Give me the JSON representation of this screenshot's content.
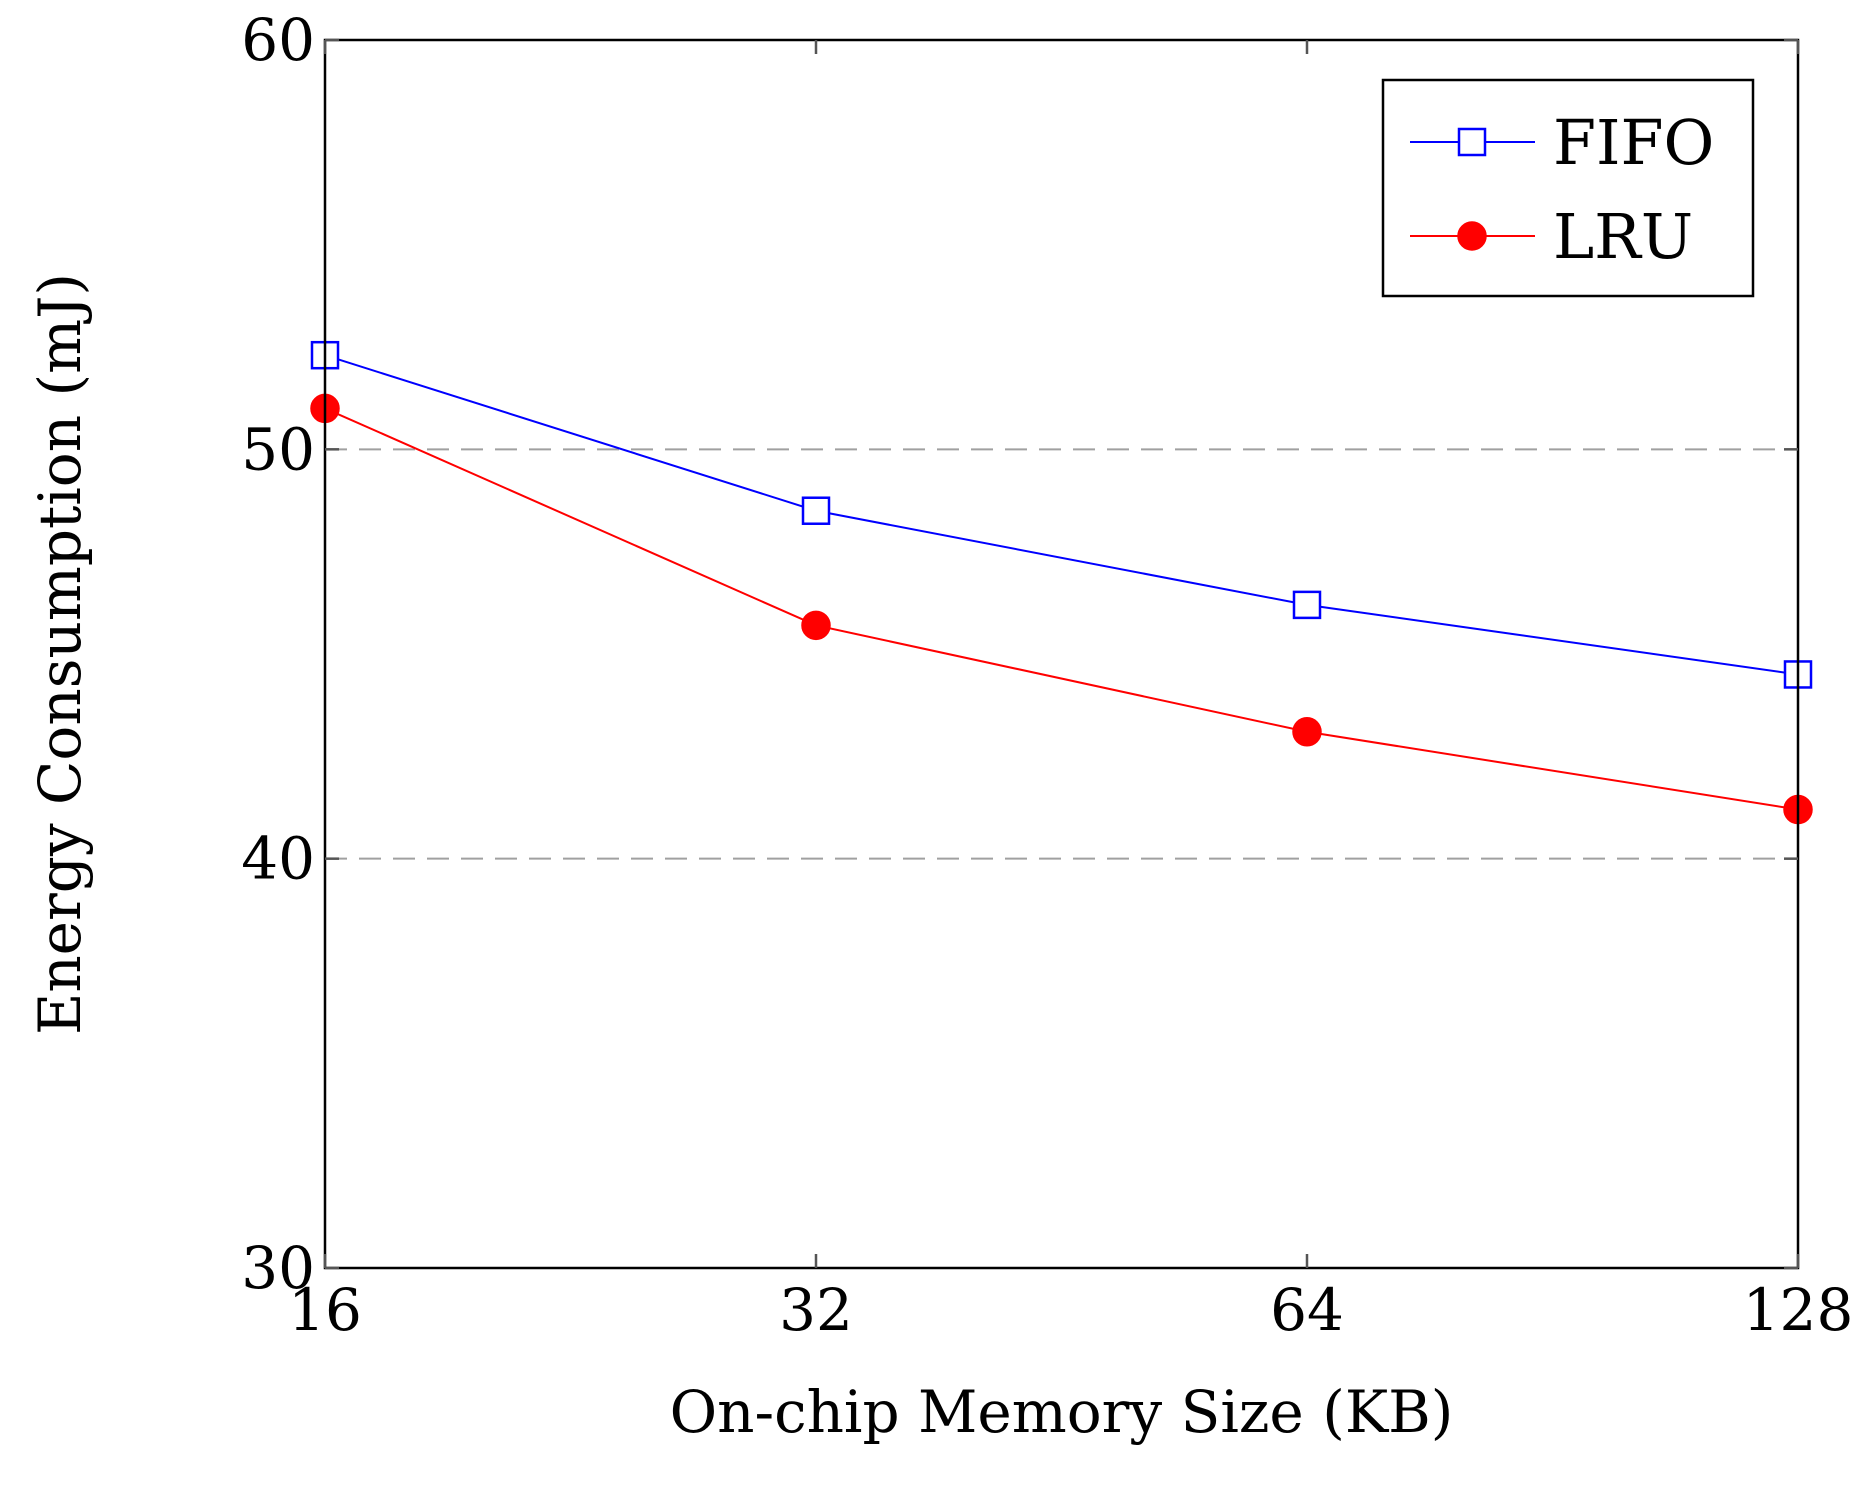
{
  "chart_data": {
    "type": "line",
    "title": "",
    "xlabel": "On-chip Memory Size (KB)",
    "ylabel": "Energy Consumption (mJ)",
    "x": [
      16,
      32,
      64,
      128
    ],
    "x_tick_labels": [
      "16",
      "32",
      "64",
      "128"
    ],
    "xlim": [
      16,
      128
    ],
    "ylim": [
      30,
      60
    ],
    "y_ticks": [
      30,
      40,
      50,
      60
    ],
    "y_tick_labels": [
      "30",
      "40",
      "50",
      "60"
    ],
    "grid": "horizontal dashed",
    "legend_position": "top-right",
    "series": [
      {
        "name": "FIFO",
        "values": [
          52.3,
          48.5,
          46.2,
          44.5
        ],
        "color": "#0000ff",
        "marker": "open-square"
      },
      {
        "name": "LRU",
        "values": [
          51.0,
          45.7,
          43.1,
          41.2
        ],
        "color": "#ff0000",
        "marker": "filled-circle"
      }
    ]
  }
}
